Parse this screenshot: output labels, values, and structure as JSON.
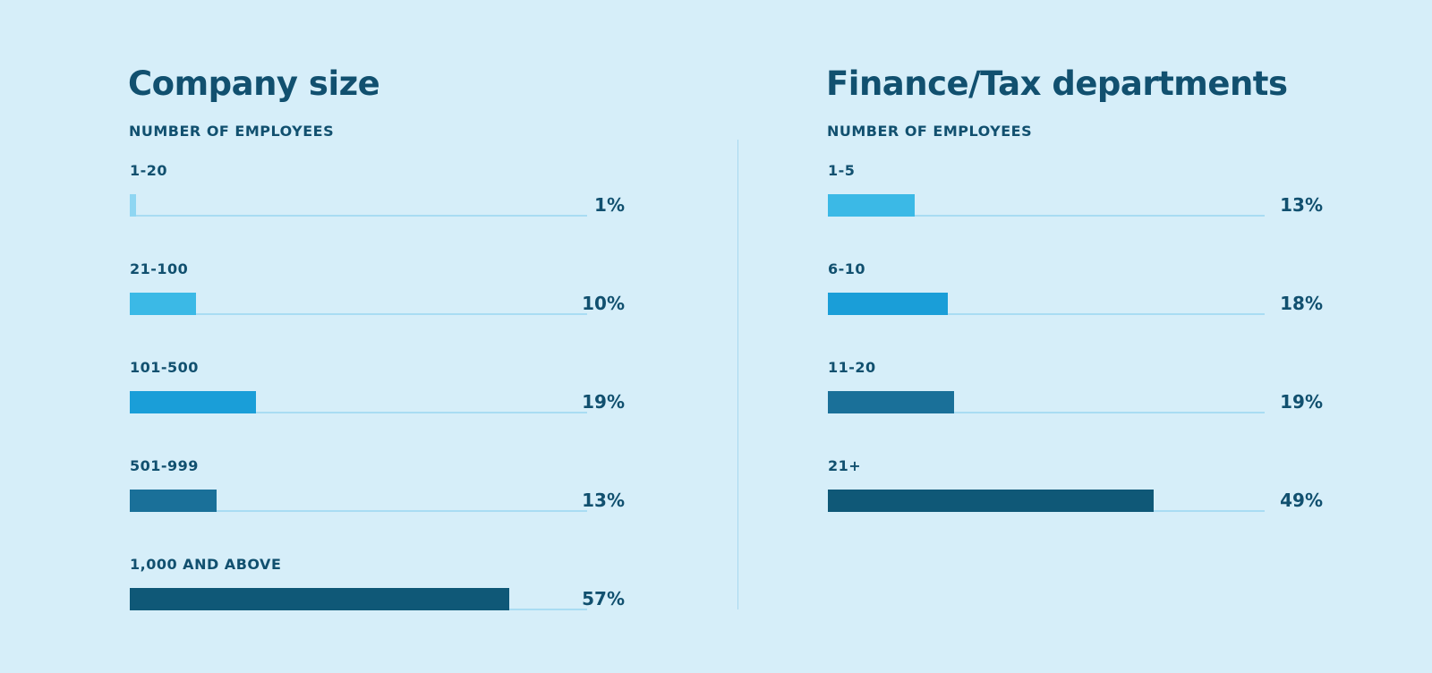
{
  "chart_data": [
    {
      "type": "bar",
      "orientation": "horizontal",
      "title": "Company size",
      "subtitle": "NUMBER OF EMPLOYEES",
      "categories": [
        "1-20",
        "21-100",
        "101-500",
        "501-999",
        "1,000 AND ABOVE"
      ],
      "values": [
        1,
        10,
        19,
        13,
        57
      ],
      "value_labels": [
        "1%",
        "10%",
        "19%",
        "13%",
        "57%"
      ],
      "colors": [
        "#8fd6f2",
        "#3bb9e6",
        "#1a9ed8",
        "#1a7099",
        "#0f5877"
      ],
      "xlim": [
        0,
        100
      ],
      "grid": false
    },
    {
      "type": "bar",
      "orientation": "horizontal",
      "title": "Finance/Tax departments",
      "subtitle": "NUMBER OF EMPLOYEES",
      "categories": [
        "1-5",
        "6-10",
        "11-20",
        "21+"
      ],
      "values": [
        13,
        18,
        19,
        49
      ],
      "value_labels": [
        "13%",
        "18%",
        "19%",
        "49%"
      ],
      "colors": [
        "#3bb9e6",
        "#1a9ed8",
        "#1a7099",
        "#0f5877"
      ],
      "xlim": [
        0,
        100
      ],
      "grid": false
    }
  ],
  "colors": {
    "background": "#d6eef9",
    "text": "#11506f",
    "track": "#a9dcf3"
  }
}
